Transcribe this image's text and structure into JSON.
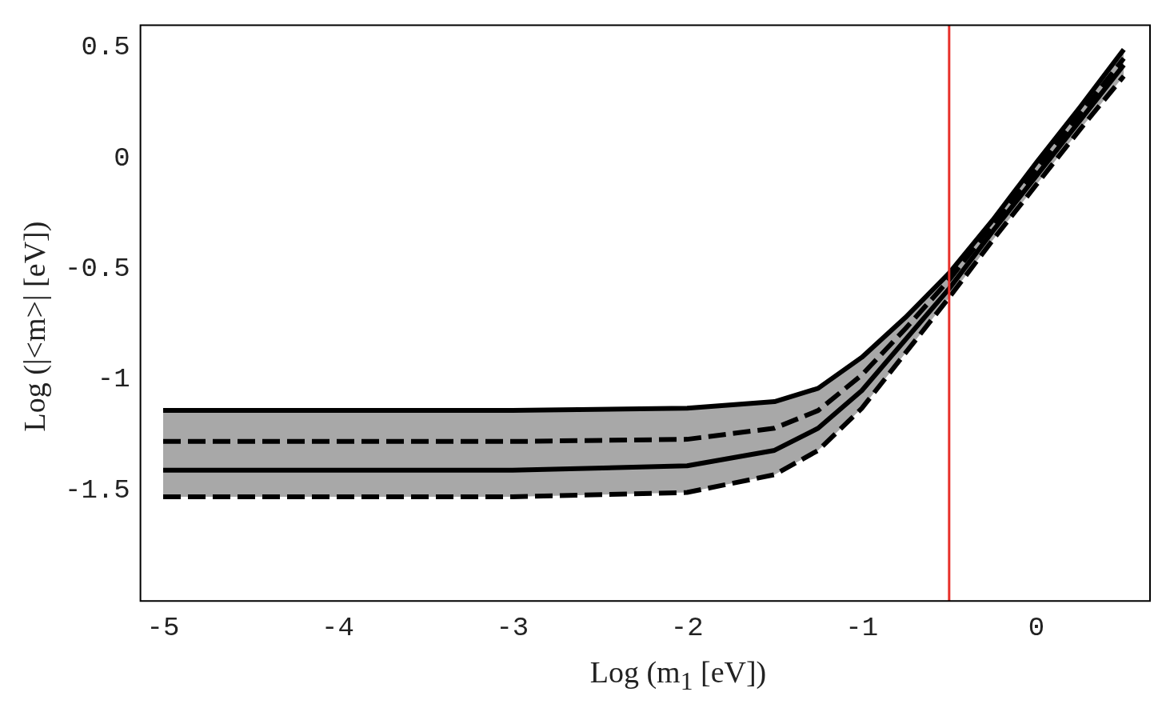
{
  "chart_data": {
    "type": "line",
    "xlabel": "Log (m$_{1}$ [eV])",
    "ylabel": "Log (|<m>| [eV])",
    "x": [
      -5,
      -4,
      -3,
      -2,
      -1.5,
      -1.25,
      -1,
      -0.75,
      -0.5,
      -0.25,
      0,
      0.25,
      0.5
    ],
    "series": [
      {
        "color": "#000000",
        "line_style": "solid",
        "values": [
          -1.14,
          -1.14,
          -1.14,
          -1.13,
          -1.1,
          -1.04,
          -0.9,
          -0.72,
          -0.52,
          -0.28,
          -0.02,
          0.23,
          0.49
        ]
      },
      {
        "color": "#000000",
        "line_style": "dashed",
        "values": [
          -1.28,
          -1.28,
          -1.28,
          -1.27,
          -1.22,
          -1.14,
          -0.98,
          -0.77,
          -0.55,
          -0.3,
          -0.05,
          0.2,
          0.45
        ]
      },
      {
        "color": "#000000",
        "line_style": "solid",
        "values": [
          -1.41,
          -1.41,
          -1.41,
          -1.39,
          -1.32,
          -1.22,
          -1.05,
          -0.82,
          -0.59,
          -0.33,
          -0.08,
          0.17,
          0.42
        ],
        "lower": [
          -1.53,
          -1.53,
          -1.53,
          -1.51,
          -1.43,
          -1.32,
          -1.13,
          -0.88,
          -0.63,
          -0.37,
          -0.12,
          0.13,
          0.37
        ],
        "upper": [
          -1.14,
          -1.14,
          -1.14,
          -1.13,
          -1.1,
          -1.04,
          -0.9,
          -0.72,
          -0.52,
          -0.28,
          -0.02,
          0.23,
          0.49
        ]
      },
      {
        "color": "#000000",
        "line_style": "dashed",
        "values": [
          -1.53,
          -1.53,
          -1.53,
          -1.51,
          -1.43,
          -1.32,
          -1.13,
          -0.88,
          -0.63,
          -0.37,
          -0.12,
          0.13,
          0.37
        ]
      }
    ],
    "xlim": [
      -5.13,
      0.65
    ],
    "xticks": [
      -5,
      -4,
      -3,
      -2,
      -1,
      0
    ],
    "ylim": [
      -2,
      0.6
    ],
    "yticks": [
      0.5,
      0,
      -0.5,
      -1,
      -1.5
    ],
    "ref_lines": [
      {
        "axis": "x",
        "value": -0.5,
        "color": "#e8302a"
      }
    ]
  }
}
